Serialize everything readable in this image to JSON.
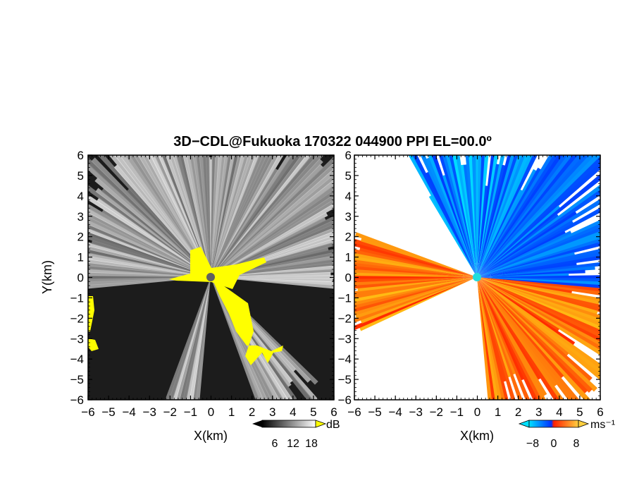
{
  "title": "3D−CDL@Fukuoka 170322 044900 PPI EL=00.0º",
  "chart_data": [
    {
      "type": "heatmap",
      "name": "snr-ppi",
      "xlabel": "X(km)",
      "ylabel": "Y(km)",
      "xlim": [
        -6,
        6
      ],
      "ylim": [
        -6,
        6
      ],
      "xticks": [
        "−6",
        "−5",
        "−4",
        "−3",
        "−2",
        "−1",
        "0",
        "1",
        "2",
        "3",
        "4",
        "5",
        "6"
      ],
      "yticks": [
        "6",
        "5",
        "4",
        "3",
        "2",
        "1",
        "0",
        "−1",
        "−2",
        "−3",
        "−4",
        "−5",
        "−6"
      ],
      "colorbar": {
        "unit": "dB",
        "ticks": [
          "6",
          "12",
          "18"
        ],
        "colors": [
          "#000000",
          "#ffffff"
        ],
        "flag_color": "#ffff00"
      }
    },
    {
      "type": "heatmap",
      "name": "doppler-ppi",
      "xlabel": "X(km)",
      "xlim": [
        -6,
        6
      ],
      "ylim": [
        -6,
        6
      ],
      "xticks": [
        "−6",
        "−5",
        "−4",
        "−3",
        "−2",
        "−1",
        "0",
        "1",
        "2",
        "3",
        "4",
        "5",
        "6"
      ],
      "yticks": [
        "6",
        "5",
        "4",
        "3",
        "2",
        "1",
        "0",
        "−1",
        "−2",
        "−3",
        "−4",
        "−5",
        "−6"
      ],
      "colorbar": {
        "unit": "ms⁻¹",
        "ticks": [
          "−8",
          "0",
          "8"
        ],
        "colors": [
          "#00d8ff",
          "#0040ff",
          "#ff2000",
          "#ffcc33"
        ]
      }
    }
  ]
}
